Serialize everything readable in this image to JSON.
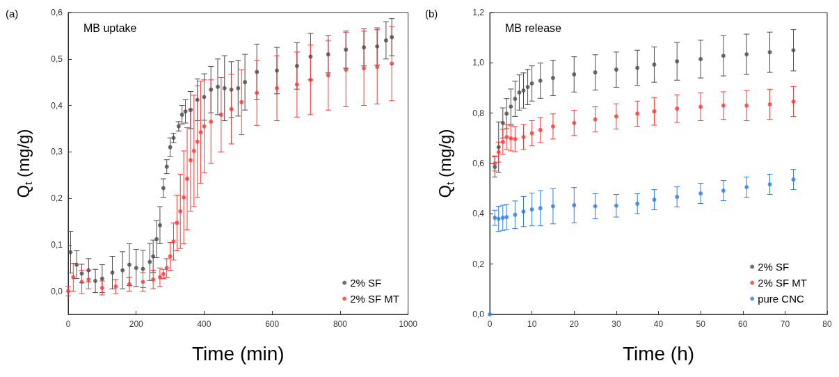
{
  "chart_data": [
    {
      "type": "scatter",
      "xlabel": "Time (min)",
      "ylabel": "Q$_{t}$ (mg/g)",
      "annotations": [
        "(a)",
        "MB uptake"
      ],
      "xlim": [
        0,
        1000
      ],
      "ylim": [
        -0.05,
        0.6
      ],
      "xticks": [
        0,
        200,
        400,
        600,
        800,
        1000
      ],
      "yticks": [
        {
          "value": 0,
          "label": "0,0"
        },
        {
          "value": 0.1,
          "label": "0,1"
        },
        {
          "value": 0.2,
          "label": "0,2"
        },
        {
          "value": 0.3,
          "label": "0,3"
        },
        {
          "value": 0.4,
          "label": "0,4"
        },
        {
          "value": 0.5,
          "label": "0,5"
        },
        {
          "value": 0.6,
          "label": "0,6"
        }
      ],
      "grid": false,
      "legend": "bottom right",
      "marker": "circle",
      "series": [
        {
          "name": "2% SF",
          "color": "#4a4a4a",
          "x": [
            7,
            25,
            40,
            60,
            80,
            100,
            130,
            160,
            180,
            200,
            220,
            240,
            250,
            260,
            270,
            280,
            290,
            300,
            310,
            325,
            335,
            345,
            360,
            380,
            400,
            420,
            440,
            460,
            480,
            500,
            520,
            555,
            614,
            673,
            713,
            765,
            817,
            870,
            909,
            935,
            952
          ],
          "values": [
            0.084,
            0.057,
            0.038,
            0.045,
            0.022,
            0.027,
            0.04,
            0.045,
            0.057,
            0.05,
            0.048,
            0.063,
            0.075,
            0.112,
            0.142,
            0.222,
            0.268,
            0.31,
            0.33,
            0.355,
            0.38,
            0.387,
            0.39,
            0.412,
            0.418,
            0.434,
            0.44,
            0.437,
            0.434,
            0.437,
            0.45,
            0.472,
            0.475,
            0.485,
            0.505,
            0.51,
            0.52,
            0.525,
            0.527,
            0.54,
            0.547
          ],
          "errors": [
            0.045,
            0.03,
            0.02,
            0.025,
            0.025,
            0.03,
            0.035,
            0.04,
            0.045,
            0.04,
            0.04,
            0.04,
            0.035,
            0.04,
            0.04,
            0.02,
            0.015,
            0.02,
            0.01,
            0.01,
            0.02,
            0.025,
            0.04,
            0.045,
            0.05,
            0.05,
            0.06,
            0.07,
            0.06,
            0.06,
            0.06,
            0.06,
            0.05,
            0.05,
            0.05,
            0.04,
            0.04,
            0.04,
            0.04,
            0.04,
            0.04
          ]
        },
        {
          "name": "2% SF MT",
          "color": "#ff3333",
          "x": [
            0,
            15,
            40,
            60,
            100,
            140,
            180,
            220,
            250,
            270,
            280,
            290,
            300,
            310,
            320,
            330,
            340,
            350,
            360,
            370,
            380,
            390,
            400,
            420,
            450,
            480,
            510,
            555,
            614,
            673,
            713,
            765,
            817,
            870,
            909,
            952
          ],
          "values": [
            0,
            0.03,
            0.02,
            0.025,
            0.007,
            0.01,
            0.015,
            0.02,
            0.025,
            0.03,
            0.037,
            0.05,
            0.075,
            0.107,
            0.147,
            0.172,
            0.202,
            0.242,
            0.282,
            0.302,
            0.322,
            0.342,
            0.355,
            0.365,
            0.38,
            0.392,
            0.407,
            0.427,
            0.437,
            0.445,
            0.455,
            0.465,
            0.477,
            0.48,
            0.483,
            0.49
          ],
          "errors": [
            0.01,
            0.03,
            0.025,
            0.02,
            0.015,
            0.015,
            0.015,
            0.02,
            0.02,
            0.02,
            0.01,
            0.02,
            0.03,
            0.04,
            0.06,
            0.08,
            0.1,
            0.11,
            0.11,
            0.12,
            0.12,
            0.11,
            0.1,
            0.09,
            0.08,
            0.075,
            0.07,
            0.07,
            0.07,
            0.07,
            0.075,
            0.075,
            0.08,
            0.08,
            0.08,
            0.08
          ]
        }
      ]
    },
    {
      "type": "scatter",
      "xlabel": "Time (h)",
      "ylabel": "Q$_{t}$ (mg/g)",
      "annotations": [
        "(b)",
        "MB release"
      ],
      "xlim": [
        0,
        80
      ],
      "ylim": [
        0,
        1.2
      ],
      "xticks": [
        0,
        10,
        20,
        30,
        40,
        50,
        60,
        70,
        80
      ],
      "yticks": [
        {
          "value": 0,
          "label": "0,0"
        },
        {
          "value": 0.2,
          "label": "0,2"
        },
        {
          "value": 0.4,
          "label": "0,4"
        },
        {
          "value": 0.6,
          "label": "0,6"
        },
        {
          "value": 0.8,
          "label": "0,8"
        },
        {
          "value": 1,
          "label": "1,0"
        },
        {
          "value": 1.2,
          "label": "1,2"
        }
      ],
      "grid": false,
      "legend": "bottom right",
      "marker": "circle",
      "series": [
        {
          "name": "2% SF",
          "color": "#4a4a4a",
          "x": [
            1.2,
            2.1,
            3.1,
            4,
            5,
            6,
            7,
            8,
            9,
            10,
            12,
            15,
            20,
            25,
            30,
            35,
            39,
            44.4,
            50,
            55.4,
            60.9,
            66.4,
            72
          ],
          "values": [
            0.586,
            0.665,
            0.761,
            0.798,
            0.826,
            0.857,
            0.882,
            0.89,
            0.904,
            0.918,
            0.929,
            0.94,
            0.954,
            0.962,
            0.973,
            0.98,
            0.993,
            1.006,
            1.015,
            1.028,
            1.034,
            1.042,
            1.05
          ],
          "errors": [
            0.04,
            0.1,
            0.06,
            0.06,
            0.07,
            0.07,
            0.07,
            0.07,
            0.07,
            0.07,
            0.07,
            0.07,
            0.07,
            0.07,
            0.07,
            0.07,
            0.07,
            0.075,
            0.075,
            0.08,
            0.08,
            0.08,
            0.082
          ]
        },
        {
          "name": "2% SF MT",
          "color": "#ff3333",
          "x": [
            1.2,
            2.1,
            3.1,
            4,
            5,
            6,
            8,
            10,
            12,
            15,
            20,
            25,
            30,
            35,
            39,
            44.4,
            50,
            55.4,
            60.9,
            66.4,
            72
          ],
          "values": [
            0.6,
            0.645,
            0.686,
            0.705,
            0.7,
            0.697,
            0.705,
            0.72,
            0.733,
            0.747,
            0.761,
            0.775,
            0.787,
            0.798,
            0.807,
            0.818,
            0.825,
            0.83,
            0.83,
            0.835,
            0.846
          ],
          "errors": [
            0.03,
            0.04,
            0.05,
            0.05,
            0.05,
            0.05,
            0.05,
            0.05,
            0.05,
            0.05,
            0.05,
            0.05,
            0.05,
            0.05,
            0.055,
            0.055,
            0.055,
            0.055,
            0.06,
            0.06,
            0.06
          ]
        },
        {
          "name": "pure CNC",
          "color": "#2d7ae8",
          "x": [
            0,
            1.2,
            2.1,
            3.1,
            4,
            6,
            8,
            10,
            12,
            15,
            20,
            25,
            30,
            35,
            39,
            44.4,
            50,
            55.4,
            60.9,
            66.4,
            72
          ],
          "values": [
            0,
            0.384,
            0.38,
            0.384,
            0.387,
            0.396,
            0.409,
            0.417,
            0.422,
            0.43,
            0.434,
            0.43,
            0.432,
            0.44,
            0.456,
            0.467,
            0.481,
            0.492,
            0.506,
            0.517,
            0.536
          ],
          "errors": [
            null,
            0.03,
            0.05,
            0.05,
            0.05,
            0.055,
            0.06,
            0.065,
            0.07,
            0.07,
            0.07,
            0.05,
            0.045,
            0.04,
            0.04,
            0.04,
            0.04,
            0.04,
            0.04,
            0.04,
            0.04
          ]
        }
      ]
    }
  ]
}
